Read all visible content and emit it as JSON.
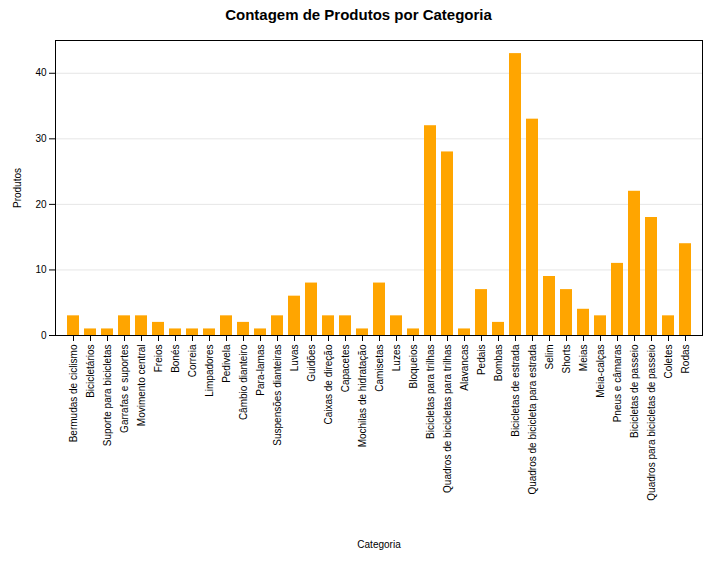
{
  "chart_data": {
    "type": "bar",
    "title": "Contagem de Produtos por Categoria",
    "xlabel": "Categoria",
    "ylabel": "Produtos",
    "categories": [
      "Bermudas de ciclismo",
      "Bicicletários",
      "Suporte para bicicletas",
      "Garrafas e suportes",
      "Movimento central",
      "Freios",
      "Bonés",
      "Correia",
      "Limpadores",
      "Pedivela",
      "Câmbio dianteiro",
      "Para-lamas",
      "Suspensões dianteiras",
      "Luvas",
      "Guidões",
      "Caixas de direção",
      "Capacetes",
      "Mochilas de hidratação",
      "Camisetas",
      "Luzes",
      "Bloqueios",
      "Bicicletas para trilhas",
      "Quadros de bicicletas para trilhas",
      "Alavancas",
      "Pedais",
      "Bombas",
      "Bicicletas de estrada",
      "Quadros de bicicleta para estrada",
      "Selim",
      "Shorts",
      "Meias",
      "Meia-calças",
      "Pneus e câmaras",
      "Bicicletas de passeio",
      "Quadros para bicicletas de passeio",
      "Coletes",
      "Rodas"
    ],
    "values": [
      3,
      1,
      1,
      3,
      3,
      2,
      1,
      1,
      1,
      3,
      2,
      1,
      3,
      6,
      8,
      3,
      3,
      1,
      8,
      3,
      1,
      32,
      28,
      1,
      7,
      2,
      43,
      33,
      9,
      7,
      4,
      3,
      11,
      22,
      18,
      3,
      14
    ],
    "color": "#FFA500",
    "ylim": [
      0,
      45
    ],
    "yticks": [
      0,
      10,
      20,
      30,
      40
    ],
    "grid": true
  }
}
